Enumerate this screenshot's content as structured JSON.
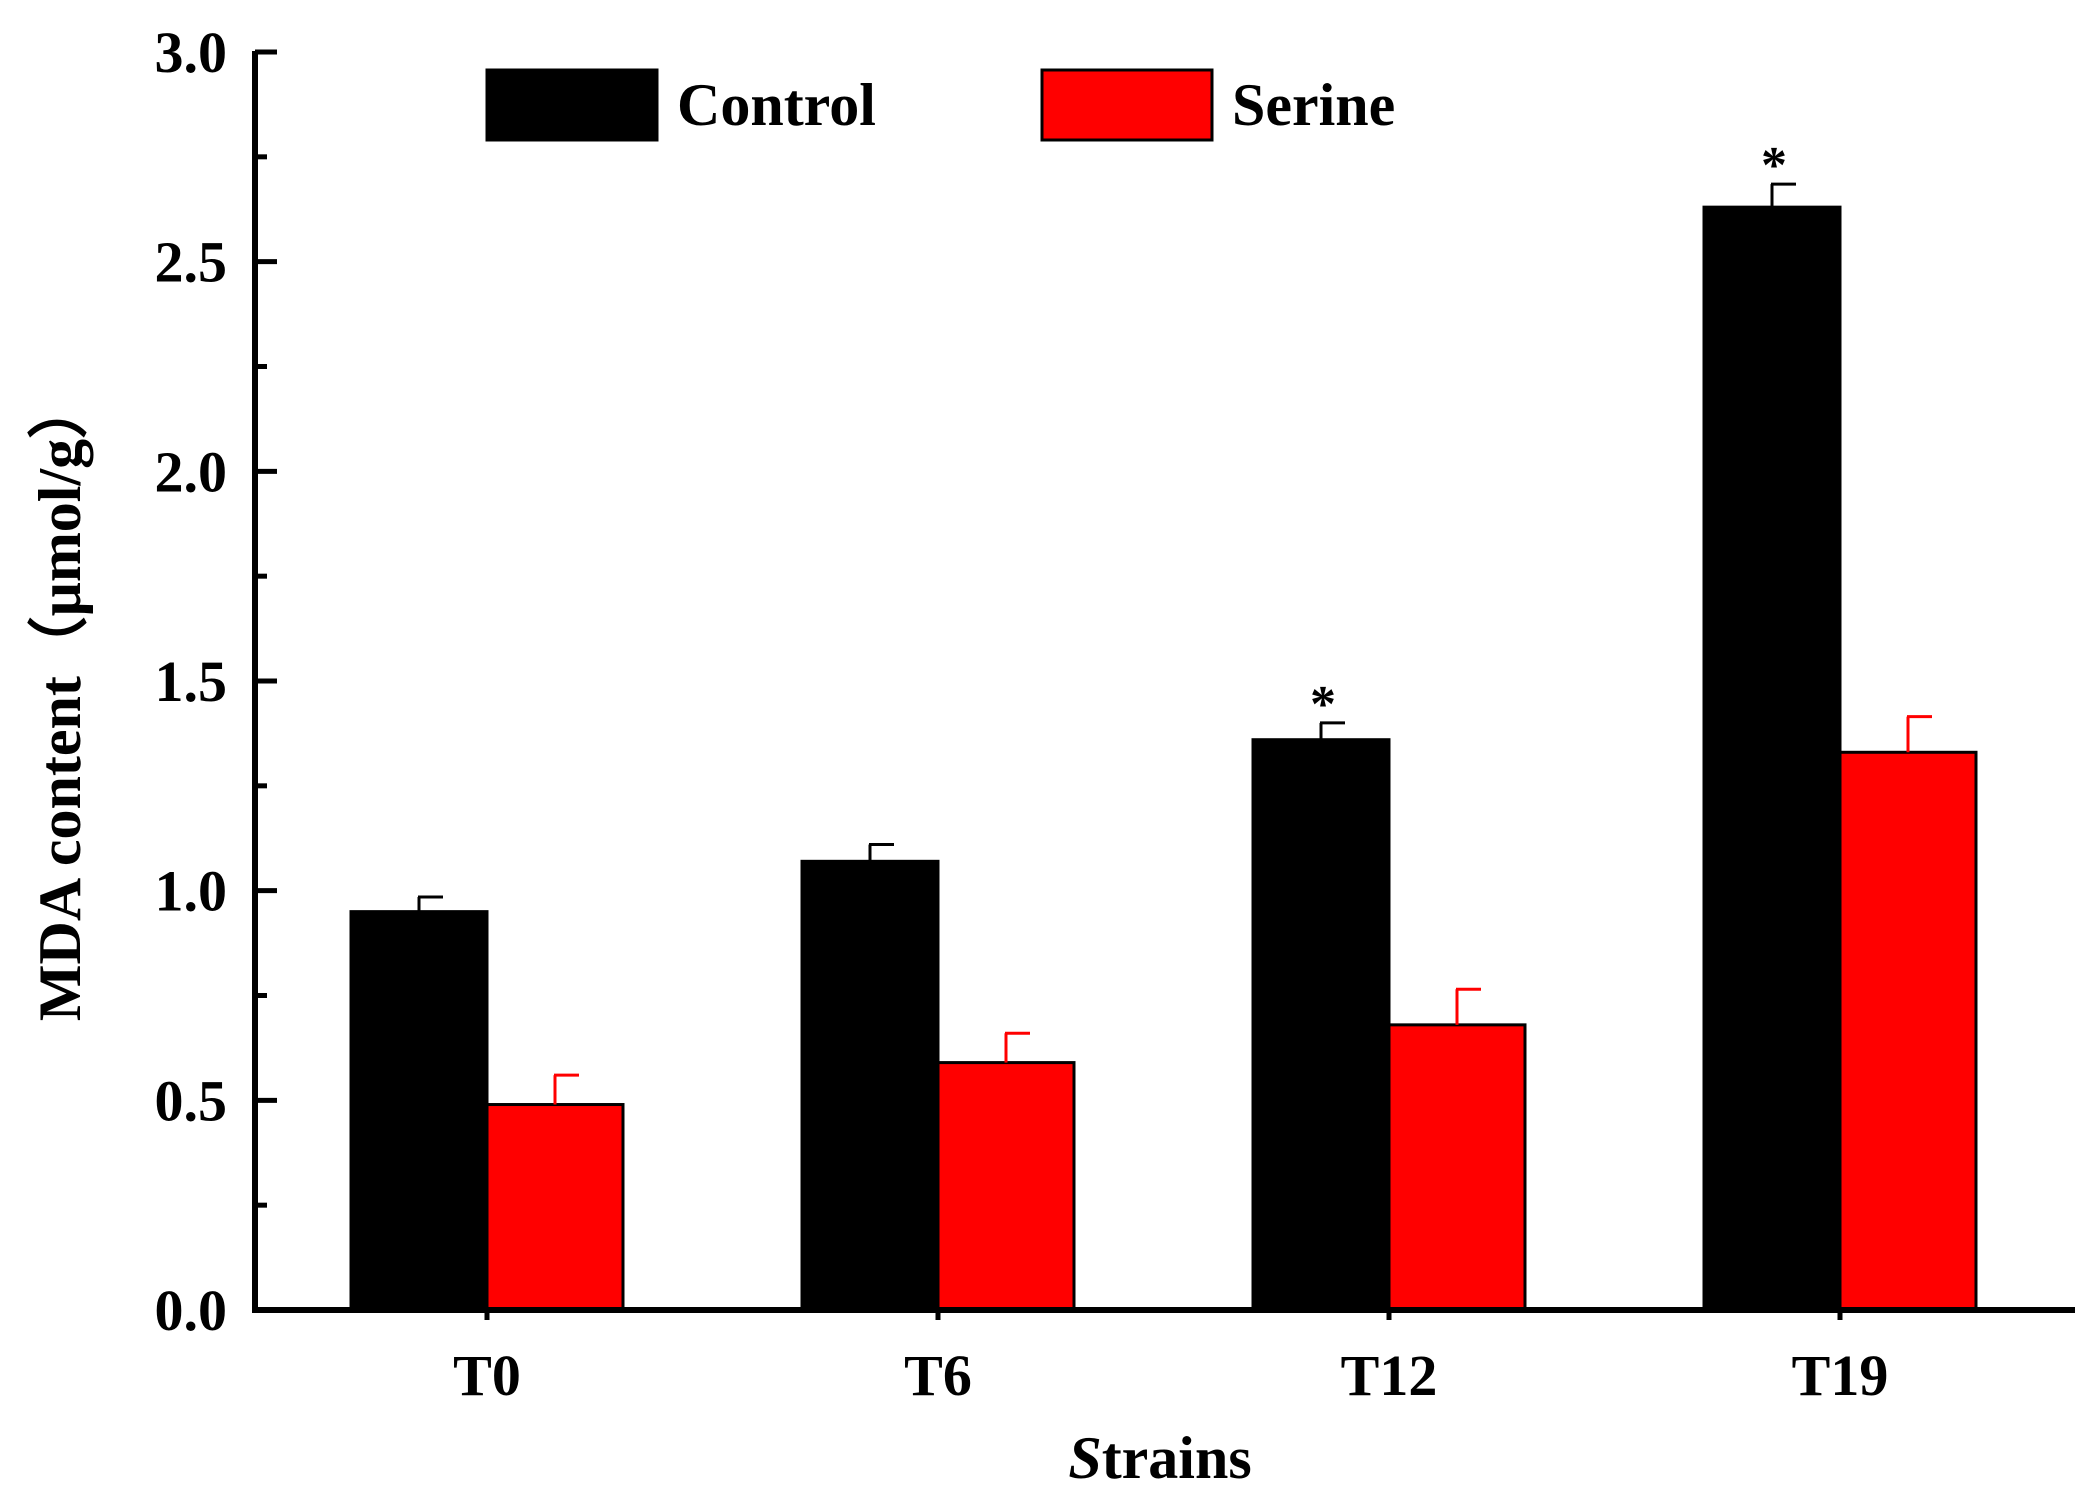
{
  "chart_data": {
    "type": "bar",
    "title": "",
    "xlabel_italic_prefix": "S",
    "xlabel_rest": "trains",
    "xlabel": "Strains",
    "ylabel": "MDA content（μmol/g）",
    "ylim": [
      0,
      3.0
    ],
    "yticks": [
      0.0,
      0.5,
      1.0,
      1.5,
      2.0,
      2.5,
      3.0
    ],
    "ytick_labels": [
      "0.0",
      "0.5",
      "1.0",
      "1.5",
      "2.0",
      "2.5",
      "3.0"
    ],
    "categories": [
      "T0",
      "T6",
      "T12",
      "T19"
    ],
    "series": [
      {
        "name": "Control",
        "color": "#000000",
        "values": [
          0.95,
          1.07,
          1.36,
          2.63
        ],
        "errors": [
          0.035,
          0.04,
          0.04,
          0.055
        ]
      },
      {
        "name": "Serine",
        "color": "#ff0000",
        "values": [
          0.49,
          0.59,
          0.68,
          1.33
        ],
        "errors": [
          0.07,
          0.07,
          0.085,
          0.085
        ]
      }
    ],
    "significance": [
      "",
      "",
      "*",
      "*"
    ],
    "legend": {
      "position": "top-left",
      "entries": [
        "Control",
        "Serine"
      ]
    },
    "grid": false
  }
}
